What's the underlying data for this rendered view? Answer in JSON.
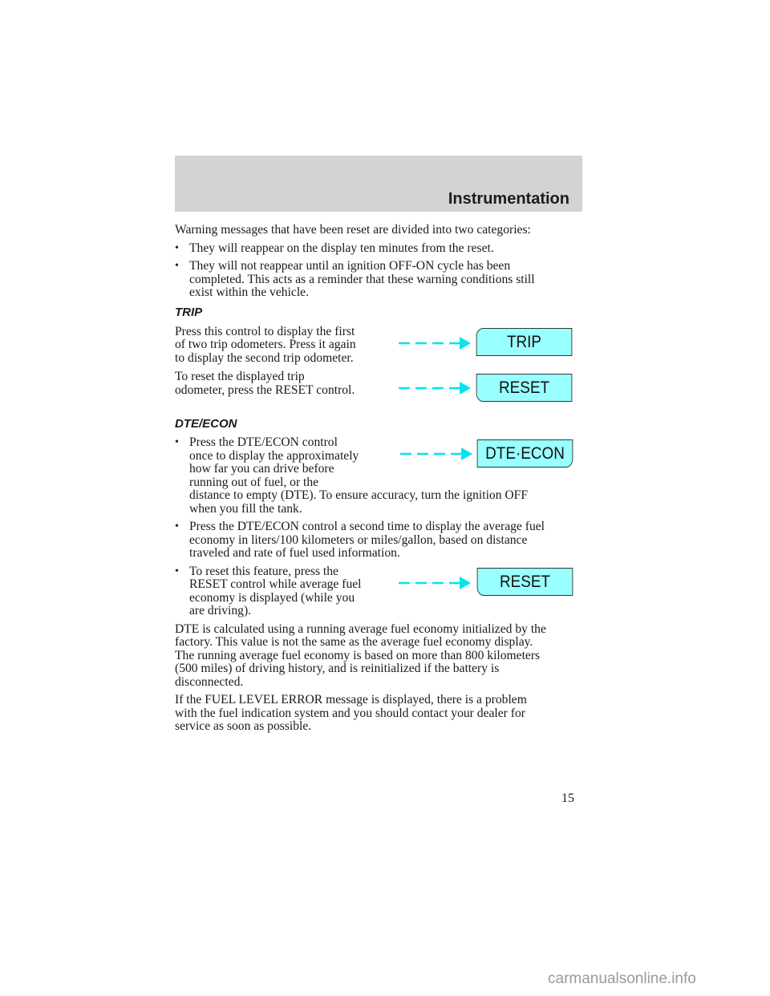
{
  "header": {
    "title": "Instrumentation"
  },
  "intro": "Warning messages that have been reset are divided into two categories:",
  "bullets1": [
    [
      "They will reappear on the display ten minutes from the reset."
    ],
    [
      "They will not reappear until an ignition OFF-ON cycle has been",
      "completed. This acts as a reminder that these warning conditions still",
      "exist within the vehicle."
    ]
  ],
  "trip": {
    "heading": "TRIP",
    "p1": [
      "Press this control to display the first",
      "of two trip odometers. Press it again",
      "to display the second trip odometer."
    ],
    "p2": [
      "To reset the displayed trip",
      "odometer, press the RESET control."
    ]
  },
  "dte": {
    "heading": "DTE/ECON",
    "b1": [
      "Press the DTE/ECON control",
      "once to display the approximately",
      "how far you can drive before",
      "running out of fuel, or the",
      "distance to empty (DTE). To ensure accuracy, turn the ignition OFF",
      "when you fill the tank."
    ],
    "b2": [
      "Press the DTE/ECON control a second time to display the average fuel",
      "economy in liters/100 kilometers or miles/gallon, based on distance",
      "traveled and rate of fuel used information."
    ],
    "b3": [
      "To reset this feature, press the",
      "RESET control while average fuel",
      "economy is displayed (while you",
      "are driving)."
    ],
    "p1": [
      "DTE is calculated using a running average fuel economy initialized by the",
      "factory. This value is not the same as the average fuel economy display.",
      "The running average fuel economy is based on more than 800 kilometers",
      "(500 miles) of driving history, and is reinitialized if the battery is",
      "disconnected."
    ],
    "p2": [
      "If the FUEL LEVEL ERROR message is displayed, there is a problem",
      "with the fuel indication system and you should contact your dealer for",
      "service as soon as possible."
    ]
  },
  "buttons": {
    "trip": "TRIP",
    "reset": "RESET",
    "dte_econ": "DTE·ECON",
    "reset2": "RESET"
  },
  "bullet_char": "•",
  "page_number": "15",
  "watermark": "carmanualsonline.info",
  "colors": {
    "button_fill": "#99ffff",
    "arrow": "#00e5ee",
    "header_band": "#d3d3d3"
  }
}
